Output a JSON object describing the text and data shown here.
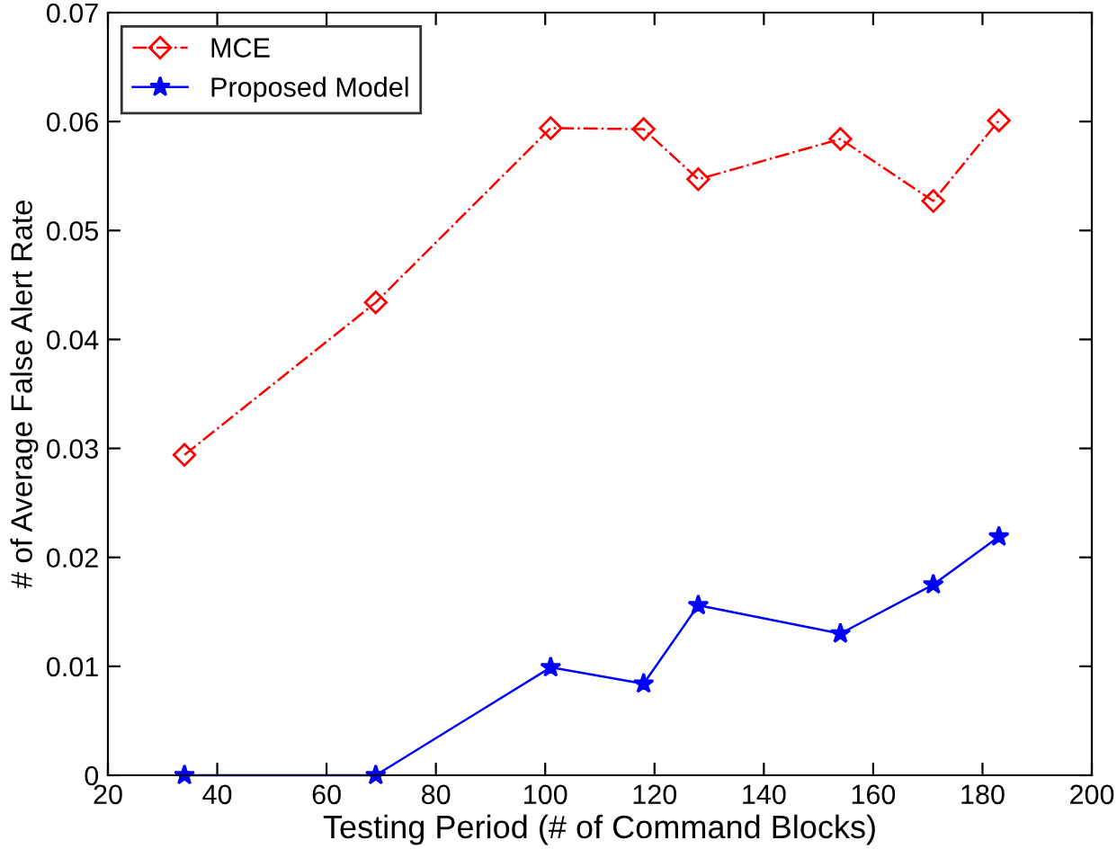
{
  "chart_data": {
    "type": "line",
    "xlabel": "Testing Period (# of Command Blocks)",
    "ylabel": "# of Average False Alert Rate",
    "x": [
      34,
      69,
      101,
      118,
      128,
      154,
      171,
      183
    ],
    "series": [
      {
        "name": "MCE",
        "color": "#ff0000",
        "marker": "diamond",
        "line_style": "dashdot",
        "values": [
          0.0294,
          0.0434,
          0.0594,
          0.0593,
          0.0547,
          0.0584,
          0.0527,
          0.0601
        ]
      },
      {
        "name": "Proposed Model",
        "color": "#0000ff",
        "marker": "star",
        "line_style": "solid",
        "values": [
          0,
          0,
          0.0099,
          0.0084,
          0.0156,
          0.013,
          0.0175,
          0.0219
        ]
      }
    ],
    "xlim": [
      20,
      200
    ],
    "xticks": [
      20,
      40,
      60,
      80,
      100,
      120,
      140,
      160,
      180,
      200
    ],
    "ylim": [
      0,
      0.07
    ],
    "yticks": [
      0,
      0.01,
      0.02,
      0.03,
      0.04,
      0.05,
      0.06,
      0.07
    ],
    "grid": false,
    "legend": "top left"
  }
}
